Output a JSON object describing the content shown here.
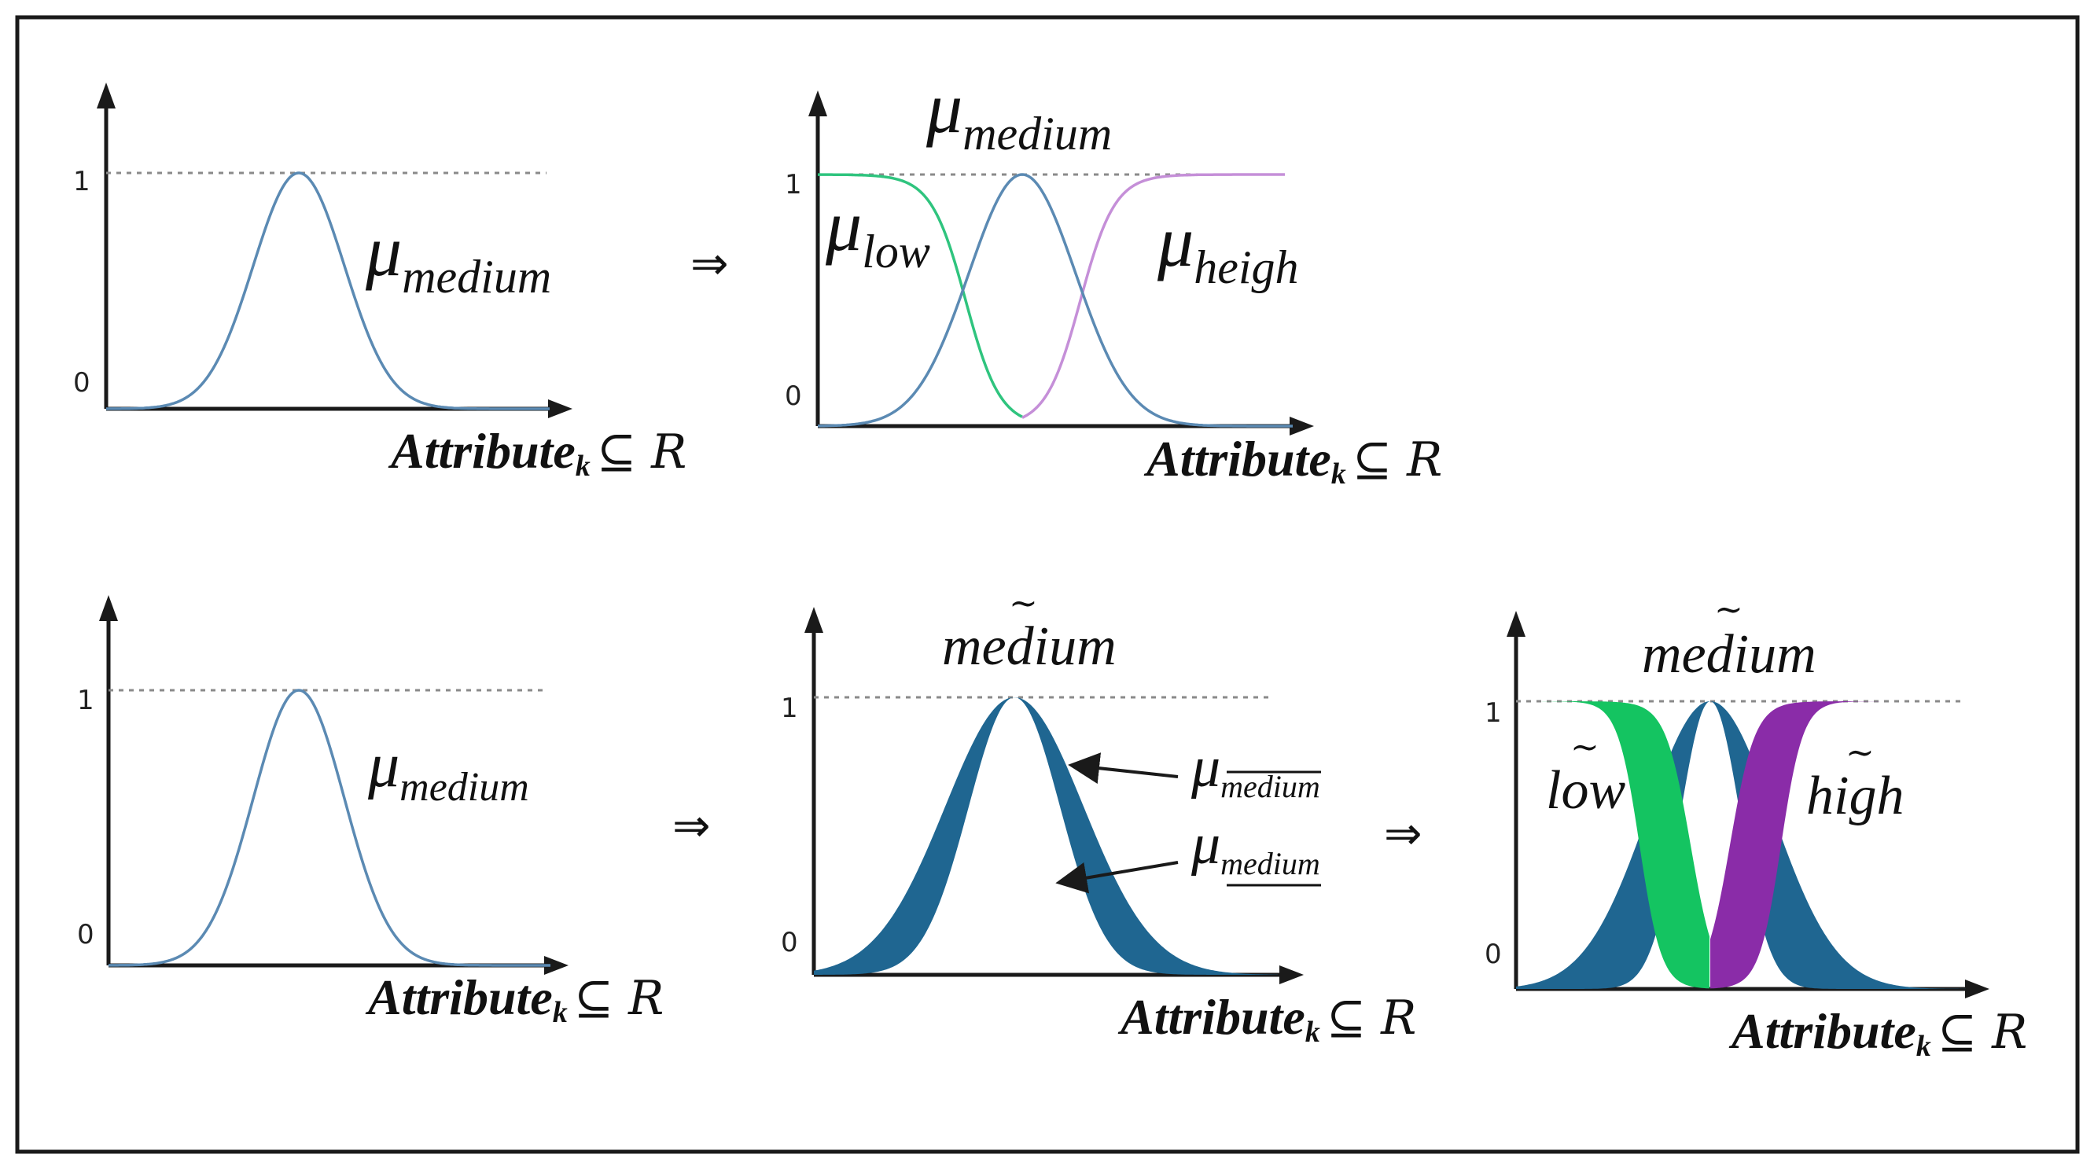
{
  "colors": {
    "curve_blue": "#5b8ab3",
    "band_blue": "#1f6691",
    "low_green": "#2fc47e",
    "band_green": "#14c461",
    "high_purple": "#c58fd8",
    "band_purple": "#8a2ca8"
  },
  "ticks": {
    "one": "1",
    "zero": "0"
  },
  "x_axis": {
    "main": "Attribute",
    "sub": "k",
    "set": "⊆ R"
  },
  "implies_symbol": "⇒",
  "mu": "μ",
  "tilde": "~",
  "labels": {
    "medium": "medium",
    "low": "low",
    "heigh": "heigh",
    "high": "high"
  },
  "panels": [
    {
      "id": "type1-single",
      "curves": [
        "medium"
      ]
    },
    {
      "id": "type1-partition",
      "curves": [
        "low",
        "medium",
        "heigh"
      ]
    },
    {
      "id": "type1-single-repeat",
      "curves": [
        "medium"
      ]
    },
    {
      "id": "it2-single",
      "curves": [
        "medium-upper",
        "medium-lower"
      ]
    },
    {
      "id": "it2-partition",
      "curves": [
        "low",
        "medium",
        "high"
      ]
    }
  ]
}
